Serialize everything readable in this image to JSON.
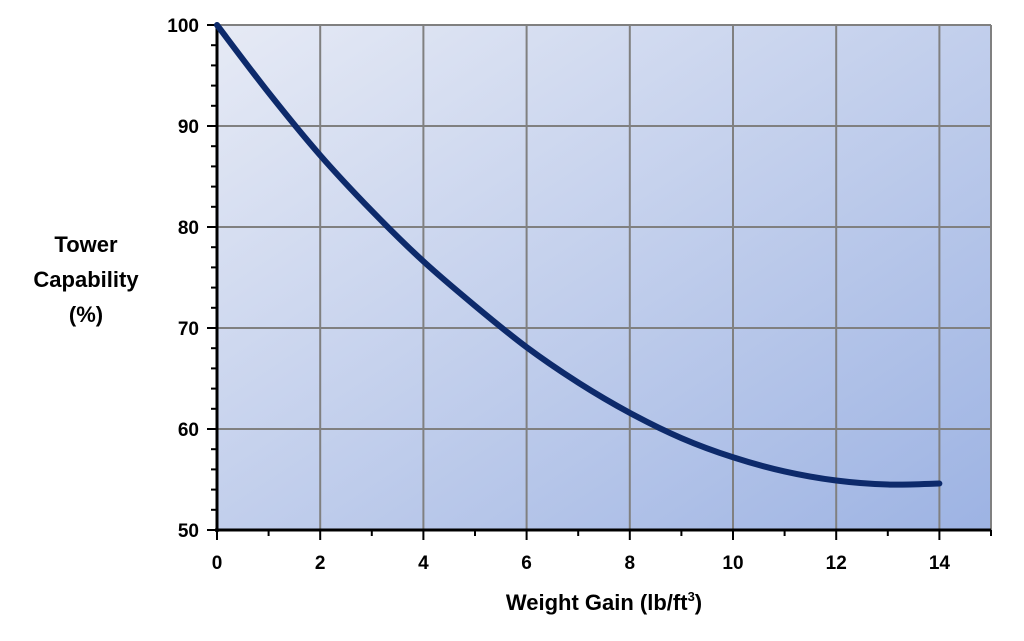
{
  "chart_data": {
    "type": "line",
    "title": "",
    "xlabel": "Weight Gain (lb/ft",
    "xlabel_sup": "3",
    "xlabel_close": ")",
    "ylabel_lines": [
      "Tower",
      "Capability",
      "(%)"
    ],
    "xlim": [
      0,
      15
    ],
    "ylim": [
      50,
      100
    ],
    "x_ticks": [
      0,
      2,
      4,
      6,
      8,
      10,
      12,
      14
    ],
    "y_ticks": [
      50,
      60,
      70,
      80,
      90,
      100
    ],
    "grid": true,
    "line_color": "#0d2a6b",
    "background_gradient": [
      "#e6eaf5",
      "#9db3e3"
    ],
    "series": [
      {
        "x": [
          0,
          1,
          2,
          3,
          4,
          5,
          6,
          7,
          8,
          9,
          10,
          11,
          12,
          13,
          14
        ],
        "y": [
          100,
          93.3,
          87.1,
          81.6,
          76.6,
          72.2,
          68.1,
          64.6,
          61.6,
          59.1,
          57.2,
          55.8,
          54.9,
          54.5,
          54.6
        ]
      }
    ]
  }
}
